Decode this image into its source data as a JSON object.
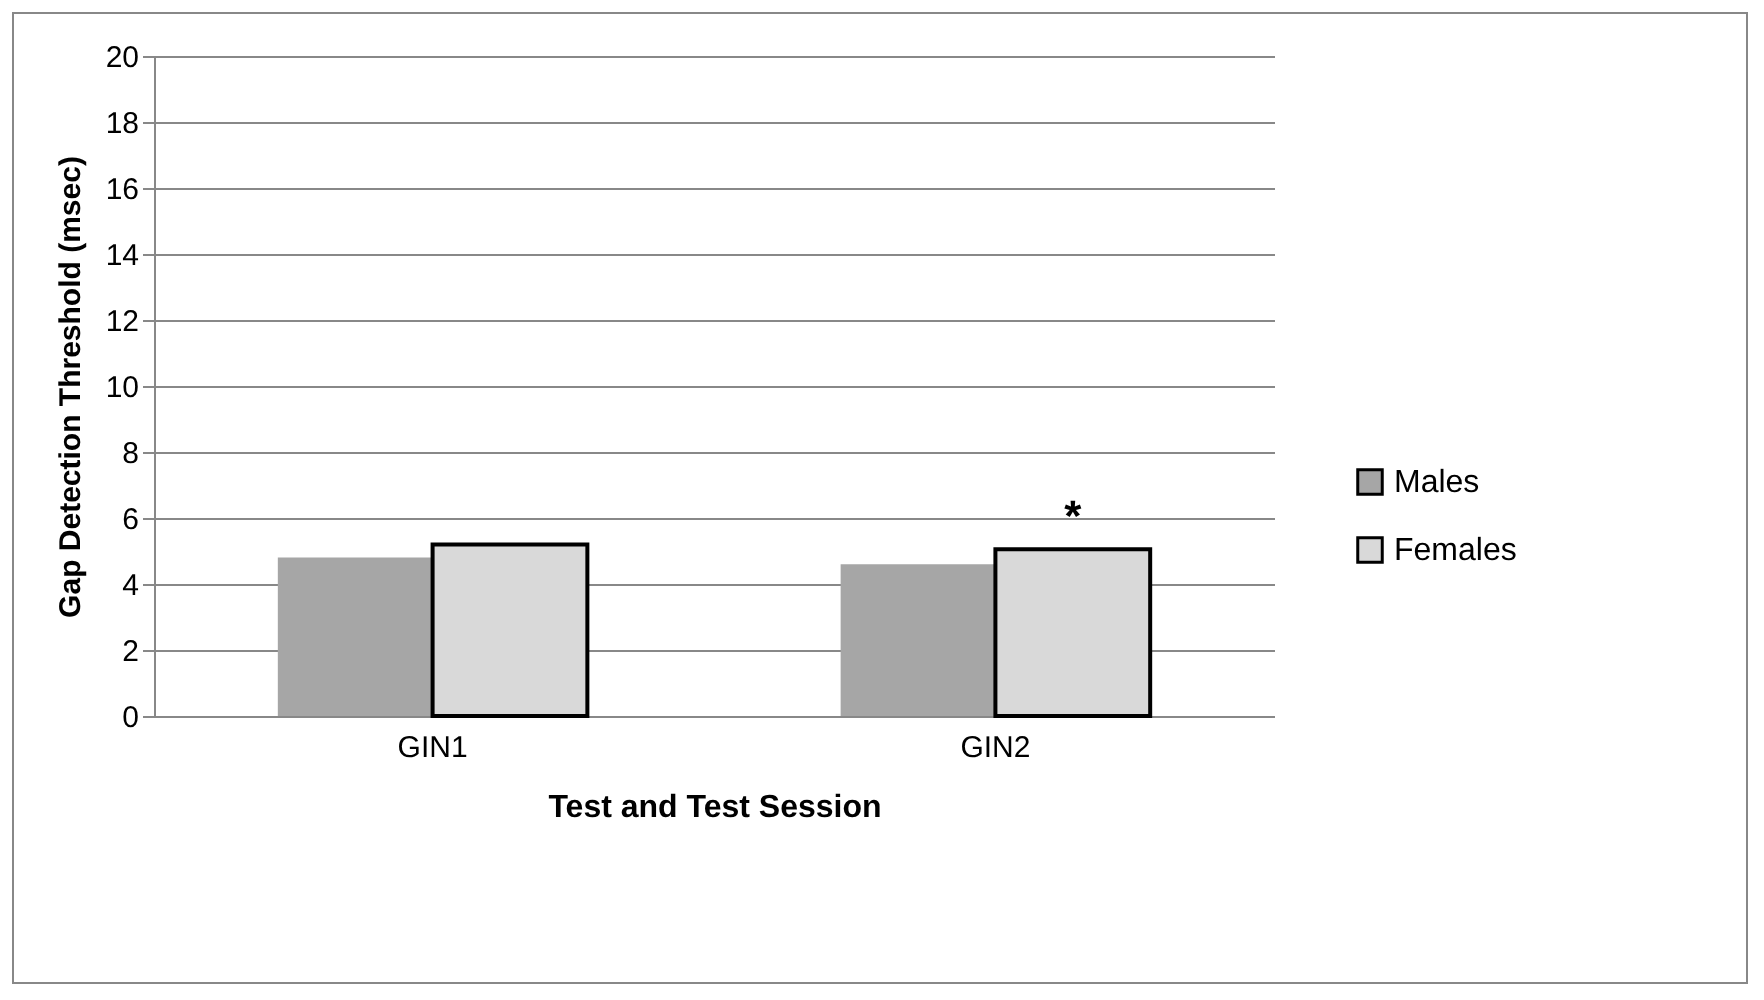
{
  "chart_data": {
    "type": "bar",
    "xlabel": "Test and Test Session",
    "ylabel": "Gap Detection Threshold (msec)",
    "categories": [
      "GIN1",
      "GIN2"
    ],
    "series": [
      {
        "name": "Males",
        "color": "#a6a6a6",
        "values": [
          4.8,
          4.6
        ]
      },
      {
        "name": "Females",
        "color": "#d9d9d9",
        "values": [
          5.2,
          5.05
        ]
      }
    ],
    "ylim": [
      0,
      20
    ],
    "yticks": [
      0,
      2,
      4,
      6,
      8,
      10,
      12,
      14,
      16,
      18,
      20
    ],
    "grid": "y",
    "legend": "right",
    "annotations": [
      {
        "text": "*",
        "x": "GIN2",
        "y": 5.05
      }
    ]
  }
}
